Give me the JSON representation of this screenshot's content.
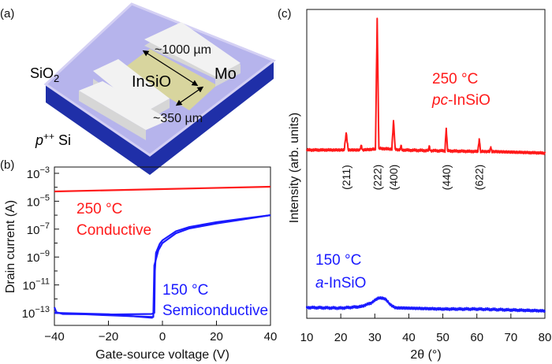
{
  "panel_labels": {
    "a": "(a)",
    "b": "(b)",
    "c": "(c)"
  },
  "schematic": {
    "sio2_label": "SiO",
    "sio2_sub": "2",
    "si_label_italic": "p",
    "si_label_sup": "++",
    "si_label_rest": " Si",
    "channel_label": "InSiO",
    "electrode_label": "Mo",
    "length_label": "~1000 µm",
    "width_label": "~350 µm",
    "colors": {
      "sio2": "#a9a9e6",
      "si": "#1f2fa8",
      "channel": "#d8d59e",
      "electrode": "#eeeeee"
    }
  },
  "chart_data": [
    {
      "type": "line",
      "panel": "b",
      "xlabel": "Gate-source voltage (V)",
      "ylabel": "Drain current (A)",
      "xlim": [
        -40,
        40
      ],
      "x_ticks": [
        "−40",
        "−20",
        "0",
        "20",
        "40"
      ],
      "x_tick_values": [
        -40,
        -20,
        0,
        20,
        40
      ],
      "y_scale": "log",
      "ylim_log10": [
        -13.9,
        -2.55
      ],
      "y_ticks": [
        {
          "base": "10",
          "exp": "−3",
          "value_log10": -3
        },
        {
          "base": "10",
          "exp": "−5",
          "value_log10": -5
        },
        {
          "base": "10",
          "exp": "−7",
          "value_log10": -7
        },
        {
          "base": "10",
          "exp": "−9",
          "value_log10": -9
        },
        {
          "base": "10",
          "exp": "−11",
          "value_log10": -11
        },
        {
          "base": "10",
          "exp": "−13",
          "value_log10": -13
        }
      ],
      "series": [
        {
          "label_line1": "250 °C",
          "label_line2": "Conductive",
          "color": "#ff1a1a",
          "sweeps": [
            [
              [
                -40,
                -4.3
              ],
              [
                0,
                -4.13
              ],
              [
                40,
                -3.96
              ]
            ]
          ]
        },
        {
          "label_line1": "150 °C",
          "label_line2": "Semiconductive",
          "color": "#1a1aff",
          "sweeps": [
            [
              [
                -40,
                -12.6
              ],
              [
                -39.3,
                -12.95
              ],
              [
                -37,
                -13.08
              ],
              [
                -20,
                -13.12
              ],
              [
                -4,
                -13.08
              ],
              [
                -3,
                -13.0
              ],
              [
                -2.8,
                -10.0
              ],
              [
                -2.4,
                -8.7
              ],
              [
                -1,
                -8.05
              ],
              [
                0,
                -7.8
              ],
              [
                5,
                -7.15
              ],
              [
                10,
                -6.85
              ],
              [
                20,
                -6.5
              ],
              [
                30,
                -6.25
              ],
              [
                40,
                -6.0
              ]
            ],
            [
              [
                40,
                -6.0
              ],
              [
                30,
                -6.3
              ],
              [
                20,
                -6.6
              ],
              [
                10,
                -6.95
              ],
              [
                5,
                -7.3
              ],
              [
                0,
                -8.0
              ],
              [
                -1.5,
                -8.5
              ],
              [
                -3.0,
                -9.6
              ],
              [
                -3.4,
                -13.3
              ],
              [
                -20,
                -13.18
              ],
              [
                -40,
                -13.0
              ]
            ],
            [
              [
                -40,
                -13.0
              ],
              [
                -20,
                -13.1
              ],
              [
                -4,
                -13.35
              ],
              [
                -3.6,
                -13.35
              ]
            ]
          ]
        }
      ]
    },
    {
      "type": "line",
      "panel": "c",
      "xlabel": "2θ (°)",
      "ylabel": "Intensity (arb. units)",
      "xlim": [
        10,
        80
      ],
      "x_ticks": [
        "10",
        "20",
        "30",
        "40",
        "50",
        "60",
        "70",
        "80"
      ],
      "x_tick_values": [
        10,
        20,
        30,
        40,
        50,
        60,
        70,
        80
      ],
      "ylim": [
        0,
        100
      ],
      "y_ticks": [],
      "peak_labels": [
        {
          "text": "(211)",
          "x": 21.6
        },
        {
          "text": "(222)",
          "x": 30.7
        },
        {
          "text": "(400)",
          "x": 35.5
        },
        {
          "text": "(440)",
          "x": 51.0
        },
        {
          "text": "(622)",
          "x": 60.7
        }
      ],
      "series": [
        {
          "label_line1": "250 °C",
          "label_italic": "pc",
          "label_rest": "-InSiO",
          "color": "#ff1a1a",
          "points": [
            [
              10,
              54.5
            ],
            [
              21,
              54.5
            ],
            [
              21.6,
              60
            ],
            [
              22.2,
              54.5
            ],
            [
              25.6,
              54.5
            ],
            [
              26,
              56
            ],
            [
              26.4,
              54.5
            ],
            [
              30.2,
              54.8
            ],
            [
              30.7,
              97
            ],
            [
              31.2,
              55
            ],
            [
              35,
              54.8
            ],
            [
              35.5,
              64
            ],
            [
              36,
              54.8
            ],
            [
              37.4,
              54.5
            ],
            [
              37.7,
              56
            ],
            [
              38,
              54.5
            ],
            [
              45.7,
              54.3
            ],
            [
              46,
              55.8
            ],
            [
              46.3,
              54.3
            ],
            [
              50.6,
              54.2
            ],
            [
              51,
              61.5
            ],
            [
              51.4,
              54.2
            ],
            [
              60.3,
              54
            ],
            [
              60.7,
              58
            ],
            [
              61.1,
              54
            ],
            [
              63.8,
              54
            ],
            [
              64.1,
              55.5
            ],
            [
              64.4,
              54
            ],
            [
              80,
              53.5
            ]
          ]
        },
        {
          "label_line1": "150 °C",
          "label_italic": "a",
          "label_rest": "-InSiO",
          "color": "#1a1aff",
          "points": [
            [
              10,
              3.5
            ],
            [
              20,
              3.3
            ],
            [
              26,
              3.8
            ],
            [
              29,
              5
            ],
            [
              31,
              6.6
            ],
            [
              33,
              6.4
            ],
            [
              34.5,
              4.5
            ],
            [
              36,
              3.4
            ],
            [
              50,
              3
            ],
            [
              60,
              3
            ],
            [
              70,
              2.7
            ],
            [
              80,
              2.4
            ]
          ]
        }
      ]
    }
  ]
}
